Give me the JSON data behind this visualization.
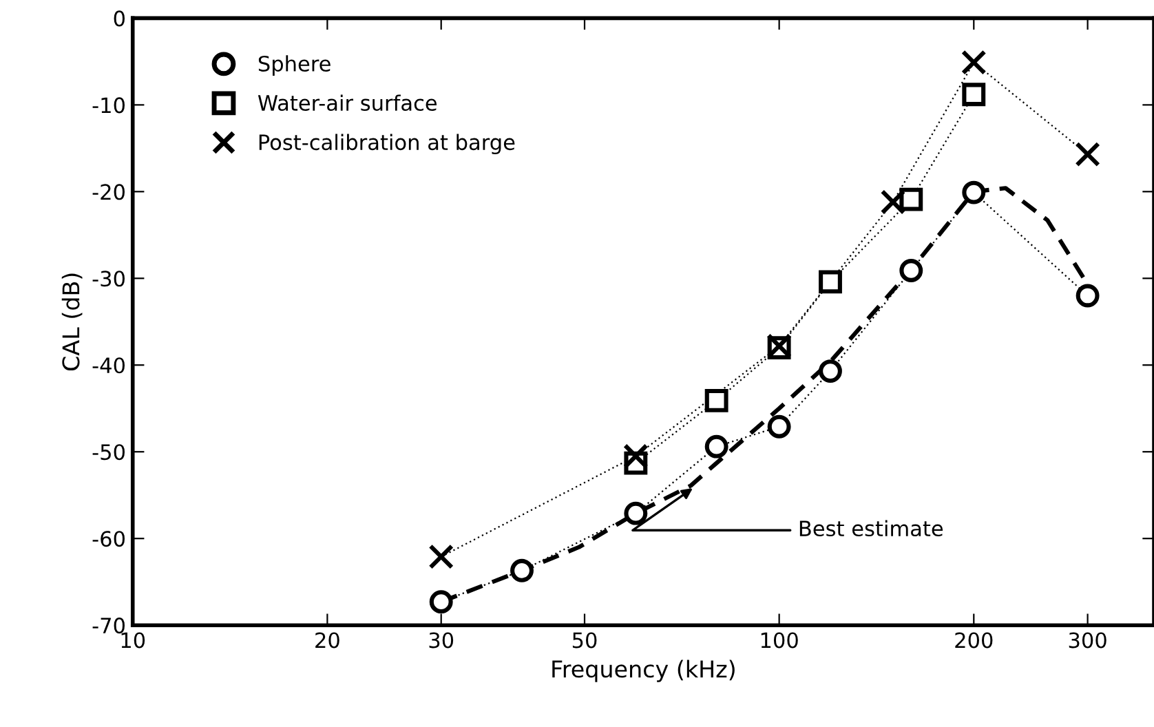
{
  "chart_data": {
    "type": "line",
    "xlabel": "Frequency (kHz)",
    "ylabel": "CAL (dB)",
    "log": "x",
    "xlim": [
      10,
      380
    ],
    "xticks": [
      10,
      20,
      30,
      50,
      100,
      200,
      300
    ],
    "ylim": [
      -70,
      0
    ],
    "yticks": [
      0,
      -10,
      -20,
      -30,
      -40,
      -50,
      -60,
      -70
    ],
    "grid": false,
    "legend": "top left",
    "series": [
      {
        "name": "Sphere",
        "color": "#000000",
        "marker": "circle",
        "line_style": "dotted",
        "x": [
          30,
          40,
          60,
          80,
          100,
          120,
          160,
          200,
          300
        ],
        "values": [
          -67.3,
          -63.7,
          -57.1,
          -49.4,
          -47.1,
          -40.7,
          -29.1,
          -20.1,
          -32.0
        ]
      },
      {
        "name": "Water-air surface",
        "color": "#000000",
        "marker": "square",
        "line_style": "dotted",
        "x": [
          60,
          80,
          100,
          120,
          160,
          200
        ],
        "values": [
          -51.3,
          -44.1,
          -38.0,
          -30.4,
          -20.9,
          -8.8
        ]
      },
      {
        "name": "Post-calibration at barge",
        "color": "#000000",
        "marker": "cross",
        "line_style": "dotted",
        "x": [
          30,
          60,
          100,
          150,
          200,
          300
        ],
        "values": [
          -62.1,
          -50.5,
          -37.8,
          -21.2,
          -5.1,
          -15.7
        ]
      },
      {
        "color": "#000000",
        "marker": "none",
        "line_style": "dashed",
        "x": [
          30,
          40,
          49,
          60,
          73,
          80,
          100,
          120,
          160,
          200,
          224,
          260,
          300
        ],
        "values": [
          -67.3,
          -63.7,
          -61.0,
          -57.1,
          -53.9,
          -51.3,
          -45.0,
          -39.6,
          -29.0,
          -20.0,
          -19.6,
          -23.3,
          -30.7
        ]
      }
    ],
    "annotations": [
      {
        "text": "Best estimate",
        "x": 73.5,
        "y": -54.2
      }
    ]
  }
}
